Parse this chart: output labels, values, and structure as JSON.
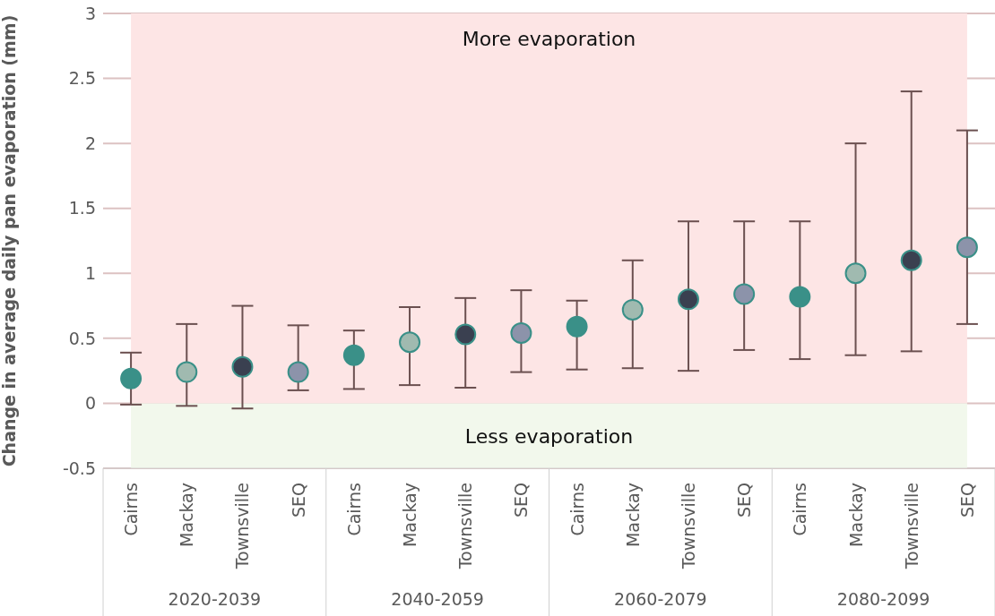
{
  "chart_data": {
    "type": "scatter",
    "ylabel": "Change in average daily pan evaporation (mm)",
    "categories": [
      "Cairns",
      "Mackay",
      "Townsville",
      "SEQ",
      "Cairns",
      "Mackay",
      "Townsville",
      "SEQ",
      "Cairns",
      "Mackay",
      "Townsville",
      "SEQ",
      "Cairns",
      "Mackay",
      "Townsville",
      "SEQ"
    ],
    "values": [
      0.19,
      0.24,
      0.28,
      0.24,
      0.37,
      0.47,
      0.53,
      0.54,
      0.59,
      0.72,
      0.8,
      0.84,
      0.82,
      1.0,
      1.1,
      1.2
    ],
    "errors": [
      [
        -0.01,
        0.39
      ],
      [
        -0.02,
        0.61
      ],
      [
        -0.04,
        0.75
      ],
      [
        0.1,
        0.6
      ],
      [
        0.11,
        0.56
      ],
      [
        0.14,
        0.74
      ],
      [
        0.12,
        0.81
      ],
      [
        0.24,
        0.87
      ],
      [
        0.26,
        0.79
      ],
      [
        0.27,
        1.1
      ],
      [
        0.25,
        1.4
      ],
      [
        0.41,
        1.4
      ],
      [
        0.34,
        1.4
      ],
      [
        0.37,
        2.0
      ],
      [
        0.4,
        2.4
      ],
      [
        0.61,
        2.1
      ]
    ],
    "colors": [
      "#3a9088",
      "#a0bab0",
      "#3a4050",
      "#8c93aa",
      "#3a9088",
      "#a0bab0",
      "#3a4050",
      "#8c93aa",
      "#3a9088",
      "#a0bab0",
      "#3a4050",
      "#8c93aa",
      "#3a9088",
      "#a0bab0",
      "#3a4050",
      "#8c93aa"
    ],
    "annotations": [
      "2020-2039",
      "2040-2059",
      "2060-2079",
      "2080-2099"
    ],
    "bands": [
      {
        "axis": "y",
        "from": 0,
        "to": 3,
        "label": "More evaporation",
        "color": "#fde5e5"
      },
      {
        "axis": "y",
        "from": -0.5,
        "to": 0,
        "label": "Less evaporation",
        "color": "#f2f8ec"
      }
    ],
    "ylim": [
      -0.5,
      3
    ],
    "yticks": [
      -0.5,
      0,
      0.5,
      1,
      1.5,
      2,
      2.5,
      3
    ],
    "grid": "y",
    "marker": "circle"
  }
}
